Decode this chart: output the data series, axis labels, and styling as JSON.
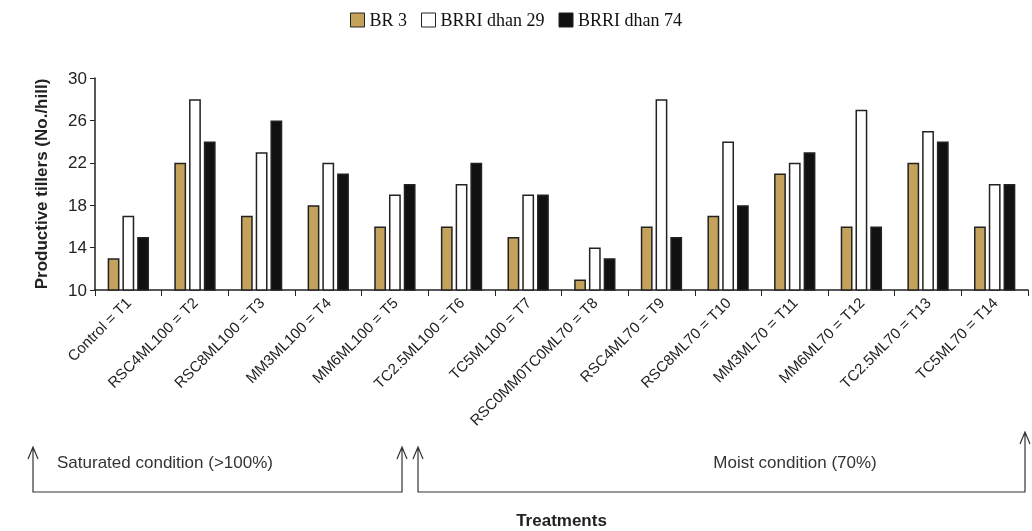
{
  "chart_data": {
    "type": "bar",
    "xlabel": "Treatments",
    "ylabel": "Productive tillers (No./hill)",
    "categories": [
      "Control = T1",
      "RSC4ML100 = T2",
      "RSC8ML100 = T3",
      "MM3ML100 = T4",
      "MM6ML100 = T5",
      "TC2.5ML100 = T6",
      "TC5ML100 = T7",
      "RSC0MM0TC0ML70 = T8",
      "RSC4ML70 = T9",
      "RSC8ML70 = T10",
      "MM3ML70 = T11",
      "MM6ML70 = T12",
      "TC2.5ML70 = T13",
      "TC5ML70 = T14"
    ],
    "series": [
      {
        "name": "BR 3",
        "color": "#c4a25c",
        "values": [
          13,
          22,
          17,
          18,
          16,
          16,
          15,
          11,
          16,
          17,
          21,
          16,
          22,
          16
        ]
      },
      {
        "name": "BRRI dhan 29",
        "color": "#ffffff",
        "values": [
          17,
          28,
          23,
          22,
          19,
          20,
          19,
          14,
          28,
          24,
          22,
          27,
          25,
          20
        ]
      },
      {
        "name": "BRRI dhan 74",
        "color": "#111111",
        "values": [
          15,
          24,
          26,
          21,
          20,
          22,
          19,
          13,
          15,
          18,
          23,
          16,
          24,
          20
        ]
      }
    ],
    "ylim": [
      10,
      30
    ],
    "yticks": [
      10,
      14,
      18,
      22,
      26,
      30
    ],
    "grid": false,
    "legend": "top",
    "annotations": [
      "Saturated condition (>100%)",
      "Moist condition (70%)"
    ]
  }
}
